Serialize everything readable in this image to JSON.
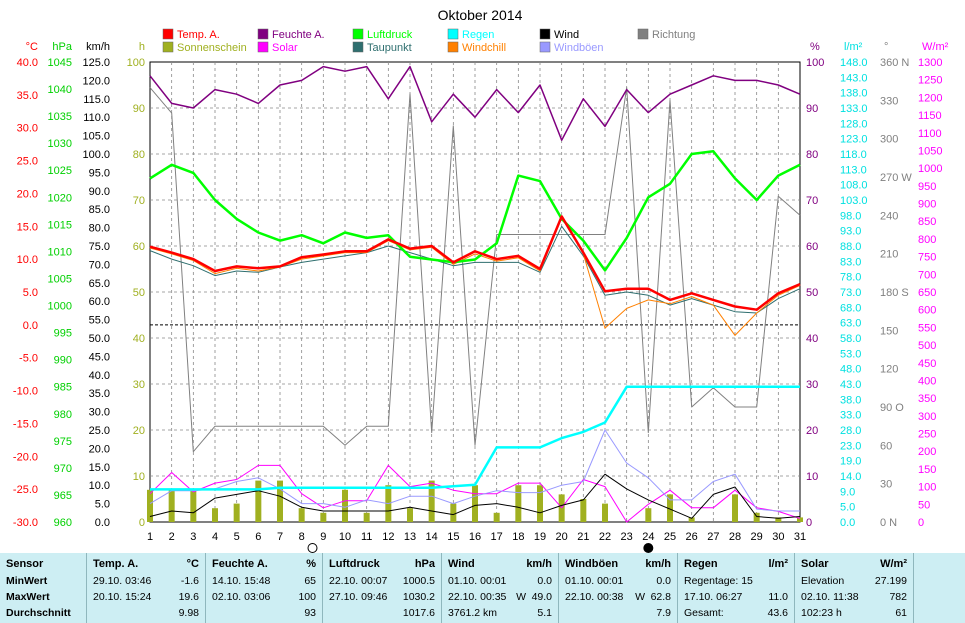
{
  "title": "Oktober 2014",
  "axes": {
    "temp": {
      "unit": "°C",
      "ticks": [
        "40.0",
        "35.0",
        "30.0",
        "25.0",
        "20.0",
        "15.0",
        "10.0",
        "5.0",
        "0.0",
        "-5.0",
        "-10.0",
        "-15.0",
        "-20.0",
        "-25.0",
        "-30.0"
      ],
      "color": "#ff0000"
    },
    "hpa": {
      "unit": "hPa",
      "ticks": [
        "1045",
        "1040",
        "1035",
        "1030",
        "1025",
        "1020",
        "1015",
        "1010",
        "1005",
        "1000",
        "995",
        "990",
        "985",
        "980",
        "975",
        "970",
        "965",
        "960"
      ],
      "color": "#00d000"
    },
    "kmh": {
      "unit": "km/h",
      "ticks": [
        "125.0",
        "120.0",
        "115.0",
        "110.0",
        "105.0",
        "100.0",
        "95.0",
        "90.0",
        "85.0",
        "80.0",
        "75.0",
        "70.0",
        "65.0",
        "60.0",
        "55.0",
        "50.0",
        "45.0",
        "40.0",
        "35.0",
        "30.0",
        "25.0",
        "20.0",
        "15.0",
        "10.0",
        "5.0",
        "0.0"
      ],
      "color": "#000000"
    },
    "h": {
      "unit": "h",
      "ticks": [
        "100",
        "90",
        "80",
        "70",
        "60",
        "50",
        "40",
        "30",
        "20",
        "10",
        "0"
      ],
      "color": "#a0b020"
    },
    "pct": {
      "unit": "%",
      "ticks": [
        "100",
        "90",
        "80",
        "70",
        "60",
        "50",
        "40",
        "30",
        "20",
        "10",
        "0"
      ],
      "color": "#800080"
    },
    "lm2": {
      "unit": "l/m²",
      "ticks": [
        "148.0",
        "143.0",
        "138.0",
        "133.0",
        "128.0",
        "123.0",
        "118.0",
        "113.0",
        "108.0",
        "103.0",
        "98.0",
        "93.0",
        "88.0",
        "83.0",
        "78.0",
        "73.0",
        "68.0",
        "63.0",
        "58.0",
        "53.0",
        "48.0",
        "43.0",
        "38.0",
        "33.0",
        "28.0",
        "23.0",
        "19.0",
        "14.0",
        "9.0",
        "5.0",
        "0.0"
      ],
      "color": "#00e0e0"
    },
    "deg": {
      "unit": "°",
      "ticks": [
        "360 N",
        "330",
        "300",
        "270 W",
        "240",
        "210",
        "180 S",
        "150",
        "120",
        "90 O",
        "60",
        "30",
        "0 N"
      ],
      "color": "#808080"
    },
    "wm2": {
      "unit": "W/m²",
      "ticks": [
        "1300",
        "1250",
        "1200",
        "1150",
        "1100",
        "1050",
        "1000",
        "950",
        "900",
        "850",
        "800",
        "750",
        "700",
        "650",
        "600",
        "550",
        "500",
        "450",
        "400",
        "350",
        "300",
        "250",
        "200",
        "150",
        "100",
        "50",
        "0"
      ],
      "color": "#ff00ff"
    },
    "days": [
      "1",
      "2",
      "3",
      "4",
      "5",
      "6",
      "7",
      "8",
      "9",
      "10",
      "11",
      "12",
      "13",
      "14",
      "15",
      "16",
      "17",
      "18",
      "19",
      "20",
      "21",
      "22",
      "23",
      "24",
      "25",
      "26",
      "27",
      "28",
      "29",
      "30",
      "31"
    ]
  },
  "legend": [
    {
      "name": "Temp. A.",
      "color": "#ff0000"
    },
    {
      "name": "Feuchte A.",
      "color": "#800080"
    },
    {
      "name": "Luftdruck",
      "color": "#00ff00"
    },
    {
      "name": "Wind",
      "color": "#000000"
    },
    {
      "name": "Regen",
      "color": "#00ffff"
    },
    {
      "name": "Richtung",
      "color": "#808080"
    },
    {
      "name": "Sonnenschein",
      "color": "#a0b020"
    },
    {
      "name": "Solar",
      "color": "#ff00ff"
    },
    {
      "name": "Taupunkt",
      "color": "#2f6f6f"
    },
    {
      "name": "Windchill",
      "color": "#ff8000"
    },
    {
      "name": "Windböen",
      "color": "#9999ff"
    }
  ],
  "chart_data": {
    "type": "line",
    "title": "Oktober 2014",
    "x": [
      1,
      2,
      3,
      4,
      5,
      6,
      7,
      8,
      9,
      10,
      11,
      12,
      13,
      14,
      15,
      16,
      17,
      18,
      19,
      20,
      21,
      22,
      23,
      24,
      25,
      26,
      27,
      28,
      29,
      30,
      31
    ],
    "series": [
      {
        "name": "Temp. A.",
        "axis": "temp",
        "values": [
          11.9,
          11,
          10,
          8.2,
          8.9,
          8.6,
          8.9,
          10.3,
          10.7,
          11.2,
          11.2,
          13,
          11.6,
          12,
          9.5,
          11.2,
          10,
          10.5,
          8.5,
          16.5,
          11,
          5.1,
          5.5,
          5.5,
          3.8,
          4.8,
          3.8,
          2.8,
          2.3,
          4.8,
          6.2
        ]
      },
      {
        "name": "Feuchte A.",
        "axis": "pct",
        "values": [
          97,
          91,
          90,
          94,
          93,
          91,
          95,
          96,
          99,
          98,
          99,
          92,
          99,
          87,
          93,
          88,
          94,
          89,
          95,
          83,
          92,
          86,
          94,
          89,
          93,
          95,
          97,
          96,
          96,
          95,
          93
        ]
      },
      {
        "name": "Luftdruck",
        "axis": "hpa",
        "values": [
          1023.5,
          1026,
          1024.5,
          1019.5,
          1016,
          1013.5,
          1012,
          1013,
          1011.5,
          1013.5,
          1012.5,
          1013,
          1009,
          1008.5,
          1008,
          1008.5,
          1011.5,
          1024,
          1023,
          1016,
          1012,
          1006.5,
          1012.5,
          1020,
          1022.5,
          1028,
          1028.5,
          1023.5,
          1019.5,
          1024,
          1026
        ]
      },
      {
        "name": "Wind",
        "axis": "kmh",
        "values": [
          1.5,
          3,
          2.5,
          6.5,
          7.5,
          8.5,
          7,
          4,
          3,
          3,
          3,
          3,
          4,
          3,
          2,
          4.5,
          5,
          4,
          2.5,
          4.5,
          6,
          13,
          9,
          6,
          3.5,
          1,
          7.5,
          9.5,
          1.5,
          1,
          1.5
        ]
      },
      {
        "name": "Regen",
        "axis": "lm2",
        "values": [
          10.5,
          10.5,
          10.5,
          10.5,
          10.5,
          10.5,
          11,
          11,
          11,
          11,
          11,
          11,
          11,
          11,
          11.5,
          12,
          24,
          24,
          24,
          27,
          29,
          32,
          43.5,
          43.5,
          43.5,
          43.5,
          43.5,
          43.5,
          43.5,
          43.5,
          43.5
        ]
      },
      {
        "name": "Richtung",
        "axis": "deg",
        "values": [
          340,
          320,
          55,
          75,
          75,
          75,
          75,
          75,
          75,
          60,
          75,
          75,
          335,
          70,
          310,
          60,
          225,
          225,
          225,
          225,
          225,
          225,
          340,
          70,
          330,
          90,
          105,
          90,
          90,
          255,
          240
        ]
      },
      {
        "name": "Sonnenschein",
        "axis": "h",
        "values": [
          7,
          7,
          7,
          3,
          4,
          9,
          9,
          3,
          2,
          7,
          2,
          8,
          3,
          9,
          4,
          8,
          2,
          8,
          8,
          6,
          5,
          4,
          0,
          3,
          6,
          1,
          0,
          6,
          2,
          1,
          1
        ]
      },
      {
        "name": "Solar",
        "axis": "wm2",
        "values": [
          80,
          140,
          85,
          110,
          120,
          160,
          160,
          80,
          40,
          60,
          60,
          160,
          100,
          110,
          90,
          80,
          80,
          110,
          110,
          40,
          120,
          100,
          0,
          50,
          90,
          40,
          40,
          90,
          40,
          30,
          10
        ]
      },
      {
        "name": "Taupunkt",
        "axis": "temp",
        "values": [
          11.3,
          10,
          9,
          7.5,
          8.2,
          8,
          8.8,
          9.5,
          10,
          10.5,
          11,
          12,
          11,
          10,
          9,
          9.5,
          9.5,
          9.5,
          8,
          15,
          10.5,
          4.5,
          5,
          4.5,
          3,
          4,
          3,
          2,
          1.8,
          4,
          5.5
        ]
      },
      {
        "name": "Windchill",
        "axis": "temp",
        "values": [
          11.7,
          10.8,
          9.8,
          7.8,
          8.6,
          8.2,
          8.8,
          10,
          10.5,
          11,
          11,
          12.8,
          11.4,
          11.8,
          9.2,
          10.8,
          9.7,
          10.2,
          8.2,
          16.3,
          10.8,
          -0.5,
          2.5,
          3.8,
          3.2,
          4.3,
          3,
          -1.6,
          1.8,
          4.5,
          6
        ]
      },
      {
        "name": "Windböen",
        "axis": "kmh",
        "values": [
          5,
          8.5,
          8.5,
          9,
          11,
          12,
          9,
          5,
          5,
          4,
          6,
          5,
          7,
          7,
          5,
          7,
          8.5,
          8,
          8,
          10,
          11,
          25,
          16,
          12,
          6,
          6,
          11,
          13,
          3.5,
          3,
          3
        ]
      }
    ],
    "reference_line": {
      "axis": "temp",
      "value": 0
    },
    "moon_symbols": [
      {
        "x": 8.5,
        "phase": "new"
      },
      {
        "x": 24,
        "phase": "full"
      }
    ]
  },
  "stats": {
    "temp": {
      "header": "Temp. A.",
      "unit": "°C",
      "min_time": "29.10.  03:46",
      "min": "-1.6",
      "max_time": "20.10.  15:24",
      "max": "19.6",
      "avg": "9.98"
    },
    "hum": {
      "header": "Feuchte A.",
      "unit": "%",
      "min_time": "14.10.  15:48",
      "min": "65",
      "max_time": "02.10.  03:06",
      "max": "100",
      "avg": "93"
    },
    "press": {
      "header": "Luftdruck",
      "unit": "hPa",
      "min_time": "22.10.  00:07",
      "min": "1000.5",
      "max_time": "27.10.  09:46",
      "max": "1030.2",
      "avg": "1017.6"
    },
    "wind": {
      "header": "Wind",
      "unit": "km/h",
      "min_time": "01.10.  00:01",
      "min": "0.0",
      "max_time": "22.10.  00:35",
      "max_dir": "W",
      "max": "49.0",
      "avg_label": "3761.2 km",
      "avg": "5.1"
    },
    "gust": {
      "header": "Windböen",
      "unit": "km/h",
      "min_time": "01.10.  00:01",
      "min": "0.0",
      "max_time": "22.10.  00:38",
      "max_dir": "W",
      "max": "62.8",
      "avg": "7.9"
    },
    "rain": {
      "header": "Regen",
      "unit": "l/m²",
      "r1_label": "Regentage: 15",
      "r2_label": "17.10.  06:27",
      "r2": "11.0",
      "r3_label": "Gesamt:",
      "r3": "43.6"
    },
    "solar": {
      "header": "Solar",
      "unit": "W/m²",
      "r1_label": "Elevation",
      "r1": "27.199",
      "r2_label": "02.10.  11:38",
      "r2": "782",
      "r3_label": "102:23 h",
      "r3": "61"
    },
    "rows": {
      "sensor": "Sensor",
      "min": "MinWert",
      "max": "MaxWert",
      "avg": "Durchschnitt"
    }
  }
}
